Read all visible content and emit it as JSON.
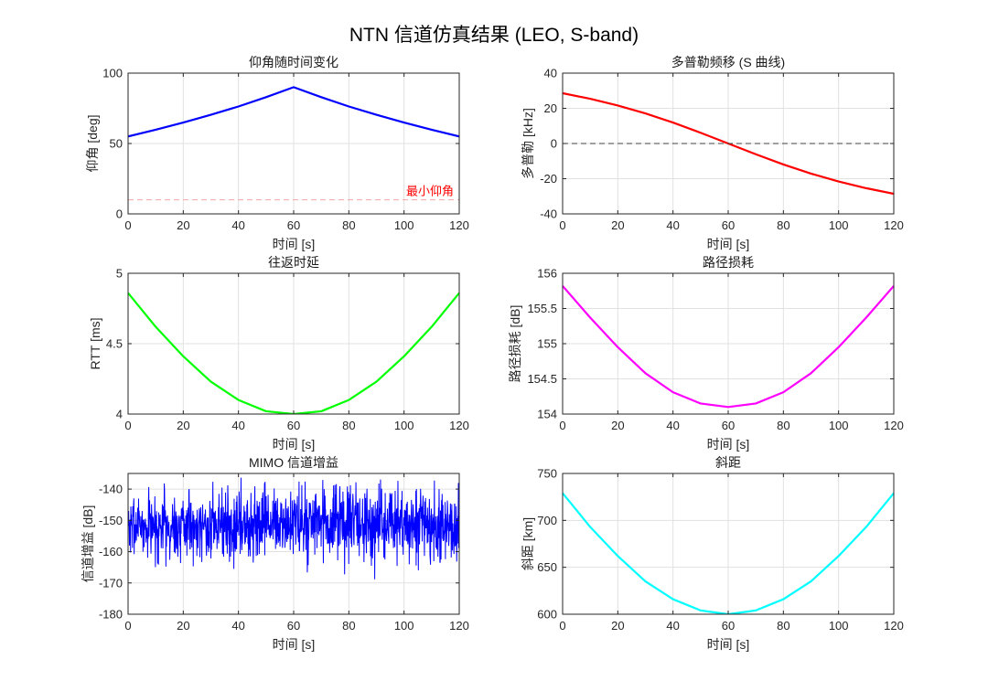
{
  "figure_title": "NTN 信道仿真结果 (LEO, S-band)",
  "colors": {
    "elevation": "#0000ff",
    "min_elevation": "#f4a6a6",
    "min_elevation_text": "#ff0000",
    "doppler": "#ff0000",
    "zero_line": "#404040",
    "rtt": "#00ff00",
    "pathloss": "#ff00ff",
    "mimo": "#0000ff",
    "slant": "#00ffff"
  },
  "chart_data": [
    {
      "id": "elevation",
      "type": "line",
      "title": "仰角随时间变化",
      "xlabel": "时间 [s]",
      "ylabel": "仰角 [deg]",
      "xlim": [
        0,
        120
      ],
      "ylim": [
        0,
        100
      ],
      "xticks": [
        "0",
        "20",
        "40",
        "60",
        "80",
        "100",
        "120"
      ],
      "yticks": [
        "0",
        "50",
        "100"
      ],
      "grid": true,
      "series": [
        {
          "color_key": "elevation",
          "x": [
            0,
            10,
            20,
            30,
            40,
            50,
            60,
            70,
            80,
            90,
            100,
            110,
            120
          ],
          "y": [
            55,
            59.8,
            64.9,
            70.4,
            76.3,
            82.9,
            90,
            82.9,
            76.3,
            70.4,
            64.9,
            59.8,
            55
          ]
        },
        {
          "color_key": "min_elevation",
          "dashed": true,
          "x": [
            0,
            120
          ],
          "y": [
            10,
            10
          ]
        }
      ],
      "annotation": {
        "text": "最小仰角",
        "x": 118,
        "y": 10
      }
    },
    {
      "id": "doppler",
      "type": "line",
      "title": "多普勒频移 (S 曲线)",
      "xlabel": "时间 [s]",
      "ylabel": "多普勒 [kHz]",
      "xlim": [
        0,
        120
      ],
      "ylim": [
        -40,
        40
      ],
      "xticks": [
        "0",
        "20",
        "40",
        "60",
        "80",
        "100",
        "120"
      ],
      "yticks": [
        "-40",
        "-20",
        "0",
        "20",
        "40"
      ],
      "grid": true,
      "series": [
        {
          "color_key": "doppler",
          "x": [
            0,
            10,
            20,
            30,
            40,
            50,
            60,
            70,
            80,
            90,
            100,
            110,
            120
          ],
          "y": [
            28.6,
            25.4,
            21.6,
            17.1,
            11.9,
            6.1,
            0,
            -6.1,
            -11.9,
            -17.1,
            -21.6,
            -25.4,
            -28.6
          ]
        },
        {
          "color_key": "zero_line",
          "dashed": true,
          "x": [
            0,
            120
          ],
          "y": [
            0,
            0
          ]
        }
      ]
    },
    {
      "id": "rtt",
      "type": "line",
      "title": "往返时延",
      "xlabel": "时间 [s]",
      "ylabel": "RTT [ms]",
      "xlim": [
        0,
        120
      ],
      "ylim": [
        4,
        5
      ],
      "xticks": [
        "0",
        "20",
        "40",
        "60",
        "80",
        "100",
        "120"
      ],
      "yticks": [
        "4",
        "4.5",
        "5"
      ],
      "grid": true,
      "series": [
        {
          "color_key": "rtt",
          "x": [
            0,
            10,
            20,
            30,
            40,
            50,
            60,
            70,
            80,
            90,
            100,
            110,
            120
          ],
          "y": [
            4.86,
            4.62,
            4.41,
            4.23,
            4.1,
            4.02,
            4.0,
            4.02,
            4.1,
            4.23,
            4.41,
            4.62,
            4.86
          ]
        }
      ]
    },
    {
      "id": "pathloss",
      "type": "line",
      "title": "路径损耗",
      "xlabel": "时间 [s]",
      "ylabel": "路径损耗 [dB]",
      "xlim": [
        0,
        120
      ],
      "ylim": [
        154,
        156
      ],
      "xticks": [
        "0",
        "20",
        "40",
        "60",
        "80",
        "100",
        "120"
      ],
      "yticks": [
        "154",
        "154.5",
        "155",
        "155.5",
        "156"
      ],
      "grid": true,
      "series": [
        {
          "color_key": "pathloss",
          "x": [
            0,
            10,
            20,
            30,
            40,
            50,
            60,
            70,
            80,
            90,
            100,
            110,
            120
          ],
          "y": [
            155.82,
            155.37,
            154.95,
            154.58,
            154.31,
            154.15,
            154.1,
            154.15,
            154.31,
            154.58,
            154.95,
            155.37,
            155.82
          ]
        }
      ]
    },
    {
      "id": "mimo",
      "type": "line",
      "title": "MIMO 信道增益",
      "xlabel": "时间 [s]",
      "ylabel": "信道增益 [dB]",
      "xlim": [
        0,
        120
      ],
      "ylim": [
        -180,
        -135
      ],
      "xticks": [
        "0",
        "20",
        "40",
        "60",
        "80",
        "100",
        "120"
      ],
      "yticks": [
        "-180",
        "-170",
        "-160",
        "-150",
        "-140"
      ],
      "grid": true,
      "noise": {
        "color_key": "mimo",
        "samples": 1200,
        "mean": -151.5,
        "sigma": 5.5,
        "ymin": -174.5,
        "ymax": -135,
        "seed": 7
      }
    },
    {
      "id": "slant",
      "type": "line",
      "title": "斜距",
      "xlabel": "时间 [s]",
      "ylabel": "斜距 [km]",
      "xlim": [
        0,
        120
      ],
      "ylim": [
        600,
        750
      ],
      "xticks": [
        "0",
        "20",
        "40",
        "60",
        "80",
        "100",
        "120"
      ],
      "yticks": [
        "600",
        "650",
        "700",
        "750"
      ],
      "grid": true,
      "series": [
        {
          "color_key": "slant",
          "x": [
            0,
            10,
            20,
            30,
            40,
            50,
            60,
            70,
            80,
            90,
            100,
            110,
            120
          ],
          "y": [
            729,
            693,
            662,
            635,
            616,
            604,
            600,
            604,
            616,
            635,
            662,
            693,
            729
          ]
        }
      ]
    }
  ]
}
